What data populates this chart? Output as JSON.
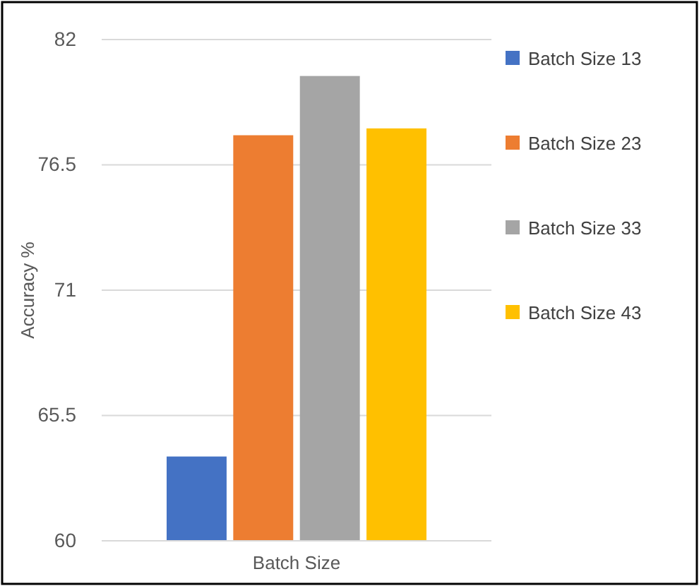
{
  "chart_data": {
    "type": "bar",
    "ylabel": "Accuracy %",
    "categories": [
      "Batch Size"
    ],
    "series": [
      {
        "name": "Batch Size 13",
        "color": "#4472c4",
        "values": [
          63.7
        ]
      },
      {
        "name": "Batch Size 23",
        "color": "#ed7d31",
        "values": [
          77.8
        ]
      },
      {
        "name": "Batch Size 33",
        "color": "#a5a5a5",
        "values": [
          80.4
        ]
      },
      {
        "name": "Batch Size 43",
        "color": "#ffc000",
        "values": [
          78.1
        ]
      }
    ],
    "ylim": [
      60,
      82
    ],
    "yticks": [
      60,
      65.5,
      71,
      76.5,
      82
    ],
    "grid": "y",
    "legend": "right"
  }
}
